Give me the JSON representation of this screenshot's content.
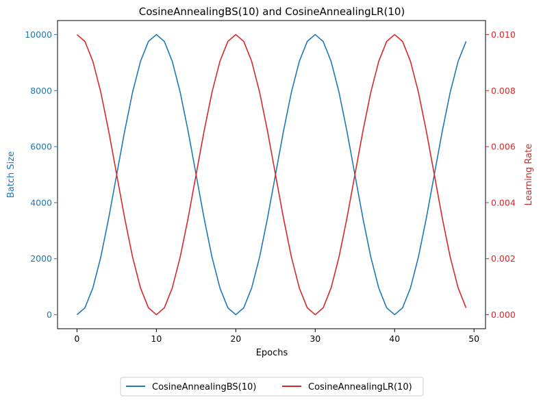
{
  "chart_data": {
    "type": "line",
    "title": "CosineAnnealingBS(10) and CosineAnnealingLR(10)",
    "xlabel": "Epochs",
    "ylabel_left": "Batch Size",
    "ylabel_right": "Learning Rate",
    "x": [
      0,
      1,
      2,
      3,
      4,
      5,
      6,
      7,
      8,
      9,
      10,
      11,
      12,
      13,
      14,
      15,
      16,
      17,
      18,
      19,
      20,
      21,
      22,
      23,
      24,
      25,
      26,
      27,
      28,
      29,
      30,
      31,
      32,
      33,
      34,
      35,
      36,
      37,
      38,
      39,
      40,
      41,
      42,
      43,
      44,
      45,
      46,
      47,
      48,
      49
    ],
    "xlim": [
      -2.45,
      51.45
    ],
    "xticks": [
      0,
      10,
      20,
      30,
      40,
      50
    ],
    "ylim_left": [
      -500,
      10500
    ],
    "yticks_left": [
      0,
      2000,
      4000,
      6000,
      8000,
      10000
    ],
    "ylim_right": [
      -0.0005,
      0.0105
    ],
    "yticks_right": [
      0.0,
      0.002,
      0.004,
      0.006,
      0.008,
      0.01
    ],
    "ytick_labels_right": [
      "0.000",
      "0.002",
      "0.004",
      "0.006",
      "0.008",
      "0.010"
    ],
    "grid": false,
    "legend_position": "bottom-center, below axes",
    "series": [
      {
        "name": "CosineAnnealingBS(10)",
        "axis": "left",
        "color": "#1f77b4",
        "values": [
          0,
          245,
          955,
          2061,
          3455,
          5000,
          6545,
          7939,
          9045,
          9755,
          10000,
          9755,
          9045,
          7939,
          6545,
          5000,
          3455,
          2061,
          955,
          245,
          0,
          245,
          955,
          2061,
          3455,
          5000,
          6545,
          7939,
          9045,
          9755,
          10000,
          9755,
          9045,
          7939,
          6545,
          5000,
          3455,
          2061,
          955,
          245,
          0,
          245,
          955,
          2061,
          3455,
          5000,
          6545,
          7939,
          9045,
          9755
        ]
      },
      {
        "name": "CosineAnnealingLR(10)",
        "axis": "right",
        "color": "#d62728",
        "values": [
          0.01,
          0.009755,
          0.009045,
          0.007939,
          0.006545,
          0.005,
          0.003455,
          0.002061,
          0.000955,
          0.000245,
          0.0,
          0.000245,
          0.000955,
          0.002061,
          0.003455,
          0.005,
          0.006545,
          0.007939,
          0.009045,
          0.009755,
          0.01,
          0.009755,
          0.009045,
          0.007939,
          0.006545,
          0.005,
          0.003455,
          0.002061,
          0.000955,
          0.000245,
          0.0,
          0.000245,
          0.000955,
          0.002061,
          0.003455,
          0.005,
          0.006545,
          0.007939,
          0.009045,
          0.009755,
          0.01,
          0.009755,
          0.009045,
          0.007939,
          0.006545,
          0.005,
          0.003455,
          0.002061,
          0.000955,
          0.000245
        ]
      }
    ]
  }
}
